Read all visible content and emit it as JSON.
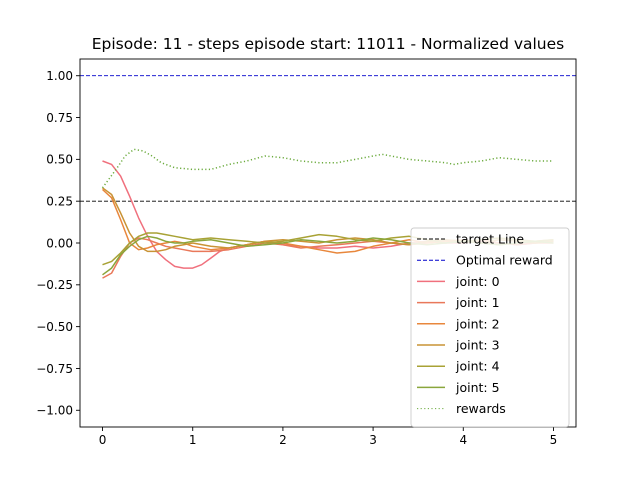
{
  "chart_data": {
    "type": "line",
    "title": "Episode: 11 - steps episode start: 11011 - Normalized values",
    "xlabel": "",
    "ylabel": "",
    "xlim": [
      -0.25,
      5.25
    ],
    "ylim": [
      -1.1,
      1.1
    ],
    "xticks": [
      "0",
      "1",
      "2",
      "3",
      "4",
      "5"
    ],
    "yticks": [
      "1.00",
      "0.75",
      "0.50",
      "0.25",
      "0.00",
      "−0.25",
      "−0.50",
      "−0.75",
      "−1.00"
    ],
    "xtick_values": [
      0,
      1,
      2,
      3,
      4,
      5
    ],
    "ytick_values": [
      1.0,
      0.75,
      0.5,
      0.25,
      0.0,
      -0.25,
      -0.5,
      -0.75,
      -1.0
    ],
    "grid": false,
    "legend_position": "lower-right",
    "hlines": [
      {
        "name": "target Line",
        "y": 0.25,
        "color": "#000000",
        "style": "dashed"
      },
      {
        "name": "Optimal reward",
        "y": 1.0,
        "color": "#0000cc",
        "style": "dashed"
      }
    ],
    "series": [
      {
        "name": "joint: 0",
        "color": "#f0707d",
        "style": "solid",
        "x": [
          0,
          0.1,
          0.2,
          0.3,
          0.4,
          0.5,
          0.6,
          0.7,
          0.8,
          0.9,
          1.0,
          1.1,
          1.2,
          1.3,
          1.4,
          1.5,
          1.6,
          1.7,
          1.8,
          1.9,
          2.0,
          2.2,
          2.4,
          2.6,
          2.8,
          3.0,
          3.2,
          3.4,
          3.6,
          3.8,
          4.0,
          4.2,
          4.4,
          4.6,
          4.8,
          5.0
        ],
        "y": [
          0.49,
          0.47,
          0.4,
          0.28,
          0.15,
          0.04,
          -0.05,
          -0.1,
          -0.14,
          -0.15,
          -0.15,
          -0.13,
          -0.09,
          -0.05,
          -0.03,
          -0.02,
          -0.01,
          0.0,
          0.01,
          0.0,
          -0.01,
          -0.02,
          -0.03,
          -0.03,
          -0.02,
          -0.03,
          -0.02,
          0.0,
          0.01,
          0.0,
          0.0,
          0.01,
          0.0,
          -0.01,
          0.0,
          0.01
        ]
      },
      {
        "name": "joint: 1",
        "color": "#e9785a",
        "style": "solid",
        "x": [
          0,
          0.1,
          0.2,
          0.3,
          0.4,
          0.5,
          0.6,
          0.7,
          0.8,
          0.9,
          1.0,
          1.2,
          1.4,
          1.6,
          1.8,
          2.0,
          2.2,
          2.4,
          2.6,
          2.8,
          3.0,
          3.2,
          3.4,
          3.6,
          3.8,
          4.0,
          4.2,
          4.4,
          4.6,
          4.8,
          5.0
        ],
        "y": [
          -0.21,
          -0.18,
          -0.08,
          0.0,
          0.03,
          0.02,
          0.0,
          -0.02,
          -0.03,
          -0.04,
          -0.05,
          -0.05,
          -0.04,
          -0.02,
          0.0,
          -0.01,
          -0.03,
          -0.02,
          -0.01,
          0.0,
          0.01,
          0.0,
          -0.01,
          0.0,
          0.01,
          0.0,
          0.02,
          0.0,
          -0.01,
          0.0,
          0.0
        ]
      },
      {
        "name": "joint: 2",
        "color": "#e8873c",
        "style": "solid",
        "x": [
          0,
          0.1,
          0.2,
          0.3,
          0.4,
          0.5,
          0.6,
          0.7,
          0.8,
          0.9,
          1.0,
          1.2,
          1.4,
          1.6,
          1.8,
          2.0,
          2.2,
          2.4,
          2.6,
          2.8,
          3.0,
          3.2,
          3.4,
          3.6,
          3.8,
          4.0,
          4.2,
          4.4,
          4.6,
          4.8,
          5.0
        ],
        "y": [
          0.32,
          0.27,
          0.14,
          0.0,
          -0.04,
          -0.03,
          -0.01,
          0.0,
          0.01,
          0.0,
          -0.02,
          -0.04,
          -0.03,
          -0.01,
          0.01,
          0.0,
          -0.02,
          -0.04,
          -0.06,
          -0.05,
          -0.02,
          0.0,
          0.02,
          0.0,
          0.01,
          0.02,
          0.0,
          -0.01,
          0.0,
          0.01,
          0.02
        ]
      },
      {
        "name": "joint: 3",
        "color": "#c99335",
        "style": "solid",
        "x": [
          0,
          0.1,
          0.2,
          0.3,
          0.4,
          0.5,
          0.6,
          0.7,
          0.8,
          0.9,
          1.0,
          1.2,
          1.4,
          1.6,
          1.8,
          2.0,
          2.2,
          2.4,
          2.6,
          2.8,
          3.0,
          3.2,
          3.4,
          3.6,
          3.8,
          4.0,
          4.2,
          4.4,
          4.6,
          4.8,
          5.0
        ],
        "y": [
          0.33,
          0.29,
          0.18,
          0.06,
          -0.02,
          -0.05,
          -0.05,
          -0.04,
          -0.02,
          -0.01,
          0.0,
          -0.02,
          -0.03,
          -0.01,
          0.01,
          0.02,
          0.01,
          0.0,
          0.02,
          0.03,
          0.02,
          0.0,
          -0.01,
          0.01,
          0.02,
          0.01,
          0.0,
          0.02,
          0.01,
          0.0,
          0.01
        ]
      },
      {
        "name": "joint: 4",
        "color": "#a8a235",
        "style": "solid",
        "x": [
          0,
          0.1,
          0.2,
          0.3,
          0.4,
          0.5,
          0.6,
          0.7,
          0.8,
          0.9,
          1.0,
          1.2,
          1.4,
          1.6,
          1.8,
          2.0,
          2.2,
          2.4,
          2.6,
          2.8,
          3.0,
          3.2,
          3.4,
          3.6,
          3.8,
          4.0,
          4.2,
          4.4,
          4.6,
          4.8,
          5.0
        ],
        "y": [
          -0.13,
          -0.11,
          -0.06,
          0.0,
          0.04,
          0.06,
          0.06,
          0.05,
          0.04,
          0.03,
          0.02,
          0.03,
          0.02,
          0.01,
          0.0,
          0.01,
          0.03,
          0.05,
          0.04,
          0.02,
          0.01,
          0.03,
          0.04,
          0.02,
          0.0,
          0.01,
          0.02,
          0.03,
          0.02,
          0.01,
          0.02
        ]
      },
      {
        "name": "joint: 5",
        "color": "#8aa63c",
        "style": "solid",
        "x": [
          0,
          0.1,
          0.2,
          0.3,
          0.4,
          0.5,
          0.6,
          0.7,
          0.8,
          0.9,
          1.0,
          1.2,
          1.4,
          1.6,
          1.8,
          2.0,
          2.2,
          2.4,
          2.6,
          2.8,
          3.0,
          3.2,
          3.4,
          3.6,
          3.8,
          4.0,
          4.2,
          4.4,
          4.6,
          4.8,
          5.0
        ],
        "y": [
          -0.19,
          -0.15,
          -0.07,
          -0.02,
          0.02,
          0.04,
          0.03,
          0.01,
          0.0,
          0.0,
          0.01,
          0.02,
          0.0,
          -0.02,
          -0.01,
          0.0,
          0.02,
          0.01,
          0.0,
          0.01,
          0.03,
          0.02,
          0.0,
          -0.01,
          0.0,
          0.01,
          0.0,
          -0.01,
          0.0,
          0.01,
          0.0
        ]
      },
      {
        "name": "rewards",
        "color": "#6aaa3c",
        "style": "dotted",
        "x": [
          0,
          0.15,
          0.25,
          0.35,
          0.45,
          0.55,
          0.65,
          0.8,
          1.0,
          1.2,
          1.4,
          1.6,
          1.8,
          2.0,
          2.2,
          2.4,
          2.6,
          2.8,
          3.0,
          3.1,
          3.2,
          3.4,
          3.6,
          3.8,
          3.9,
          4.0,
          4.2,
          4.4,
          4.6,
          4.8,
          5.0
        ],
        "y": [
          0.33,
          0.44,
          0.52,
          0.56,
          0.55,
          0.52,
          0.48,
          0.45,
          0.44,
          0.44,
          0.47,
          0.49,
          0.52,
          0.51,
          0.49,
          0.48,
          0.48,
          0.5,
          0.52,
          0.53,
          0.52,
          0.5,
          0.49,
          0.48,
          0.47,
          0.48,
          0.49,
          0.51,
          0.5,
          0.49,
          0.49
        ]
      }
    ]
  }
}
